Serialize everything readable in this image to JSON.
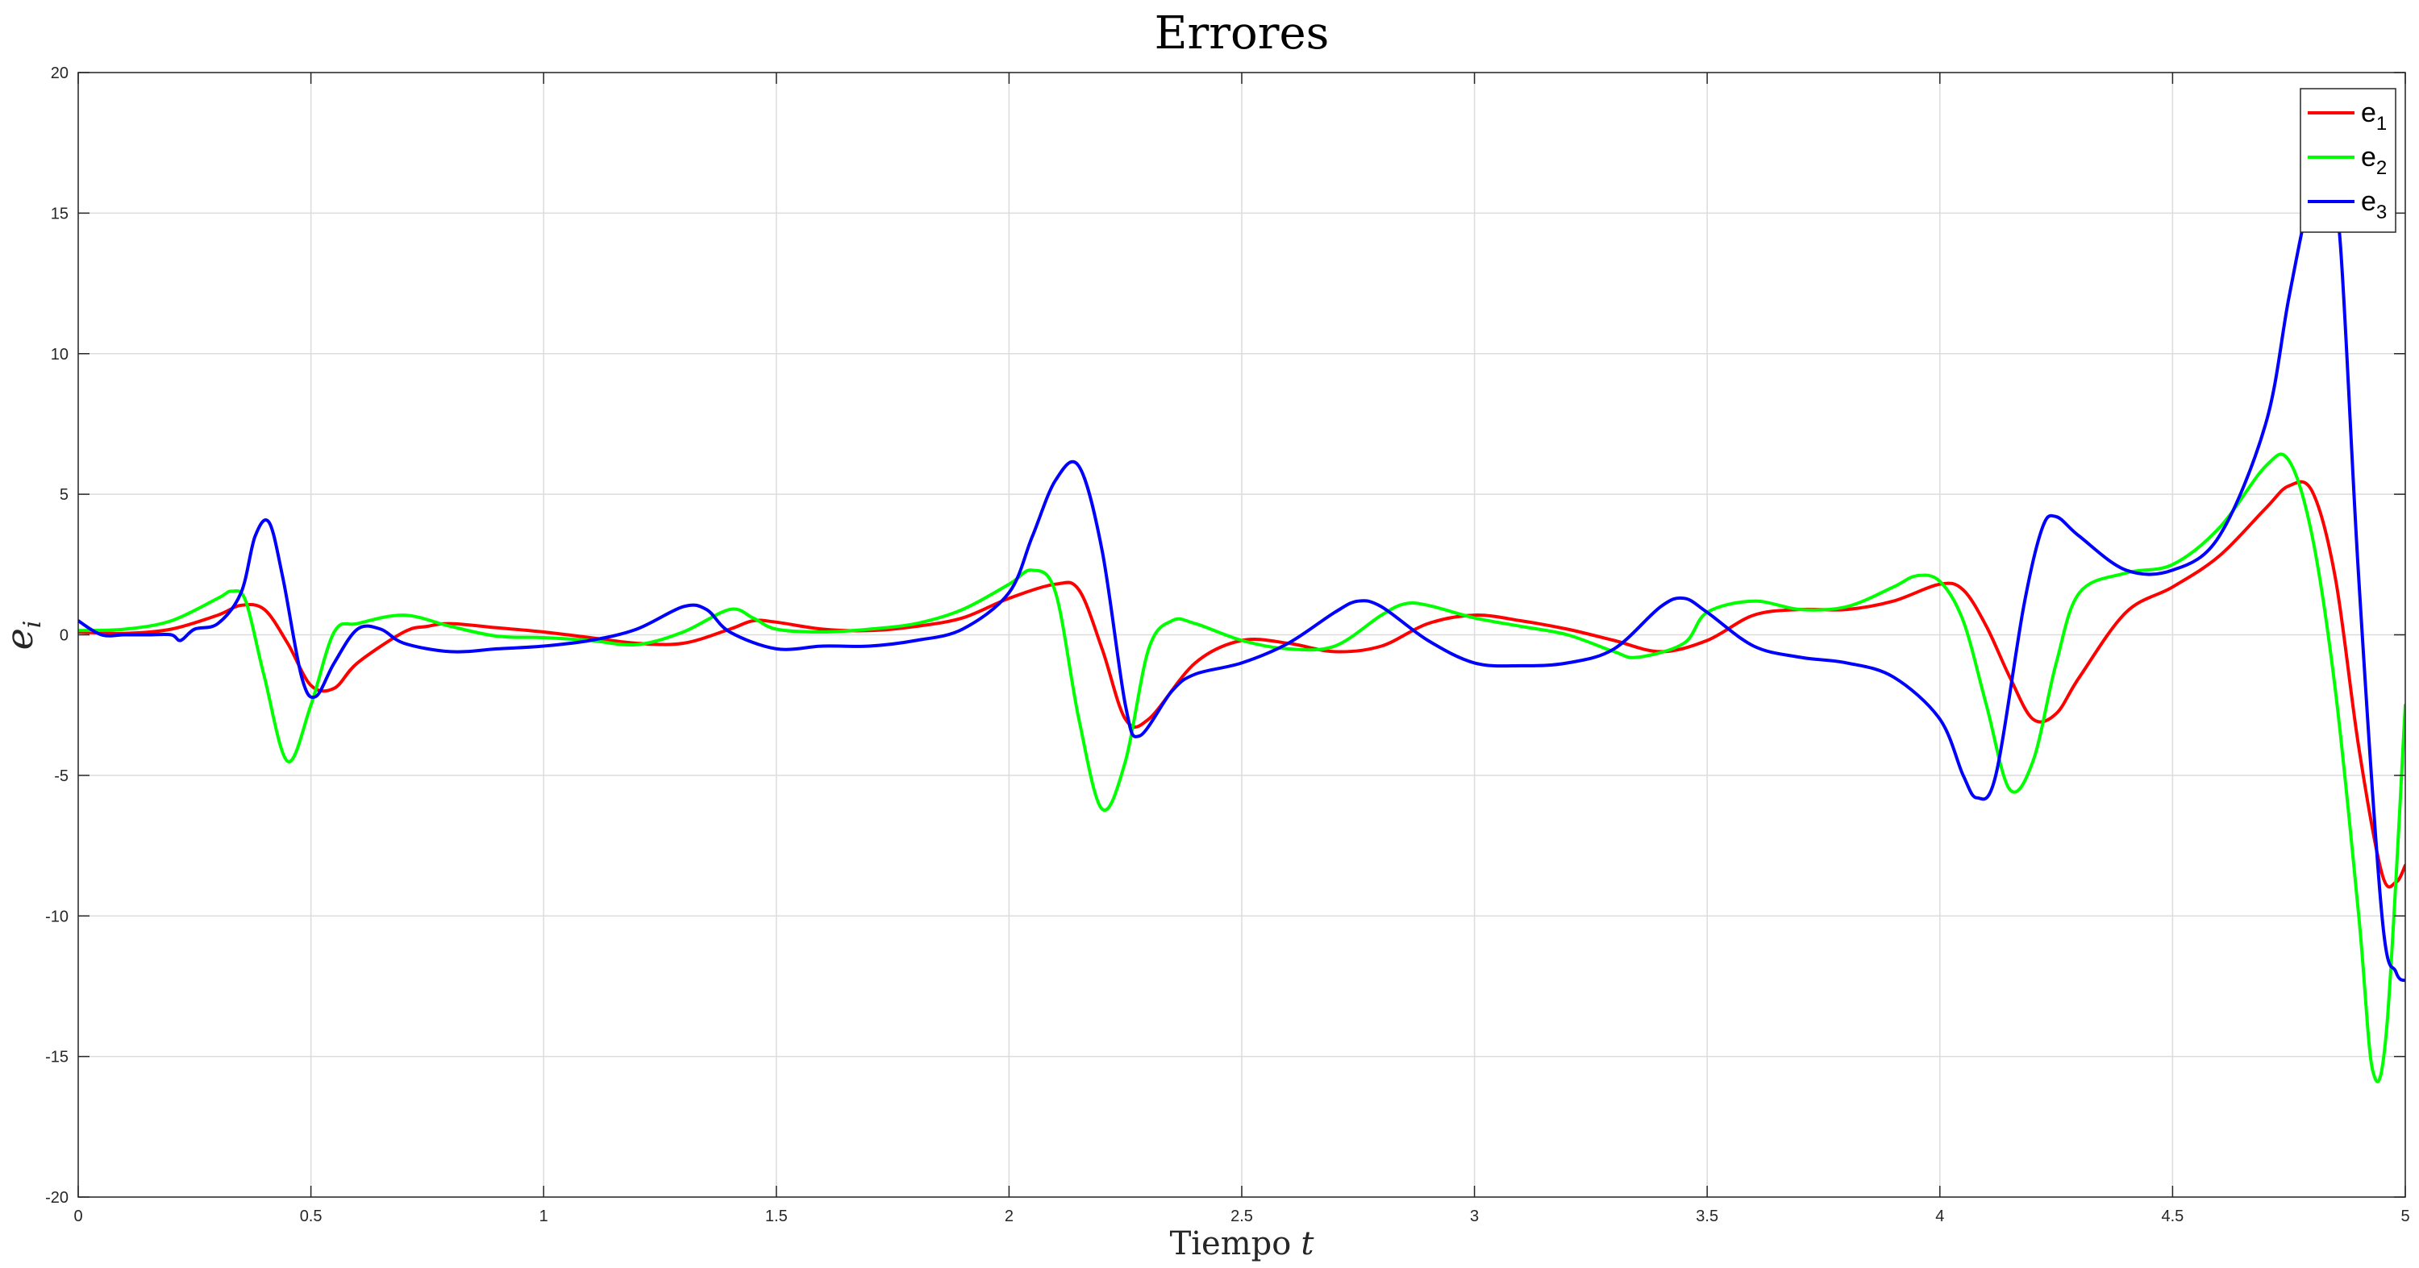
{
  "chart_data": {
    "type": "line",
    "title": "Errores",
    "xlabel_text": "Tiempo",
    "xlabel_var": "t",
    "ylabel_var": "e",
    "ylabel_sub": "i",
    "xlim": [
      0,
      5
    ],
    "ylim": [
      -20,
      20
    ],
    "xticks": [
      0,
      0.5,
      1,
      1.5,
      2,
      2.5,
      3,
      3.5,
      4,
      4.5,
      5
    ],
    "xtick_labels": [
      "0",
      "0.5",
      "1",
      "1.5",
      "2",
      "2.5",
      "3",
      "3.5",
      "4",
      "4.5",
      "5"
    ],
    "yticks": [
      -20,
      -15,
      -10,
      -5,
      0,
      5,
      10,
      15,
      20
    ],
    "ytick_labels": [
      "-20",
      "-15",
      "-10",
      "-5",
      "0",
      "5",
      "10",
      "15",
      "20"
    ],
    "grid": true,
    "legend_position": "top-right",
    "series": [
      {
        "name": "e",
        "sub": "1",
        "color": "#ff0000",
        "points": [
          [
            0,
            0.1
          ],
          [
            0.1,
            0.05
          ],
          [
            0.2,
            0.2
          ],
          [
            0.3,
            0.7
          ],
          [
            0.35,
            1.05
          ],
          [
            0.4,
            0.9
          ],
          [
            0.45,
            -0.3
          ],
          [
            0.5,
            -1.8
          ],
          [
            0.55,
            -1.9
          ],
          [
            0.6,
            -1.0
          ],
          [
            0.7,
            0.1
          ],
          [
            0.75,
            0.3
          ],
          [
            0.8,
            0.4
          ],
          [
            0.9,
            0.25
          ],
          [
            1.0,
            0.1
          ],
          [
            1.1,
            -0.1
          ],
          [
            1.2,
            -0.3
          ],
          [
            1.3,
            -0.3
          ],
          [
            1.4,
            0.2
          ],
          [
            1.45,
            0.5
          ],
          [
            1.5,
            0.45
          ],
          [
            1.6,
            0.2
          ],
          [
            1.7,
            0.15
          ],
          [
            1.8,
            0.3
          ],
          [
            1.9,
            0.6
          ],
          [
            2.0,
            1.3
          ],
          [
            2.1,
            1.8
          ],
          [
            2.15,
            1.6
          ],
          [
            2.2,
            -0.5
          ],
          [
            2.25,
            -3.0
          ],
          [
            2.3,
            -3.0
          ],
          [
            2.4,
            -1.0
          ],
          [
            2.5,
            -0.2
          ],
          [
            2.6,
            -0.3
          ],
          [
            2.7,
            -0.6
          ],
          [
            2.8,
            -0.4
          ],
          [
            2.9,
            0.4
          ],
          [
            3.0,
            0.7
          ],
          [
            3.1,
            0.5
          ],
          [
            3.2,
            0.2
          ],
          [
            3.3,
            -0.2
          ],
          [
            3.4,
            -0.6
          ],
          [
            3.5,
            -0.2
          ],
          [
            3.6,
            0.7
          ],
          [
            3.7,
            0.9
          ],
          [
            3.8,
            0.9
          ],
          [
            3.9,
            1.2
          ],
          [
            4.0,
            1.8
          ],
          [
            4.05,
            1.6
          ],
          [
            4.1,
            0.3
          ],
          [
            4.15,
            -1.5
          ],
          [
            4.2,
            -3.0
          ],
          [
            4.25,
            -2.8
          ],
          [
            4.3,
            -1.5
          ],
          [
            4.4,
            0.8
          ],
          [
            4.5,
            1.7
          ],
          [
            4.6,
            2.8
          ],
          [
            4.7,
            4.5
          ],
          [
            4.75,
            5.3
          ],
          [
            4.8,
            5.1
          ],
          [
            4.85,
            2.0
          ],
          [
            4.9,
            -4.0
          ],
          [
            4.95,
            -8.5
          ],
          [
            4.98,
            -8.8
          ],
          [
            5.0,
            -8.2
          ]
        ]
      },
      {
        "name": "e",
        "sub": "2",
        "color": "#00ff00",
        "points": [
          [
            0,
            0.15
          ],
          [
            0.1,
            0.2
          ],
          [
            0.2,
            0.5
          ],
          [
            0.3,
            1.3
          ],
          [
            0.33,
            1.55
          ],
          [
            0.36,
            1.2
          ],
          [
            0.4,
            -1.5
          ],
          [
            0.45,
            -4.5
          ],
          [
            0.5,
            -2.5
          ],
          [
            0.55,
            0.1
          ],
          [
            0.6,
            0.4
          ],
          [
            0.7,
            0.7
          ],
          [
            0.8,
            0.3
          ],
          [
            0.9,
            -0.05
          ],
          [
            1.0,
            -0.1
          ],
          [
            1.1,
            -0.2
          ],
          [
            1.2,
            -0.35
          ],
          [
            1.3,
            0.1
          ],
          [
            1.4,
            0.9
          ],
          [
            1.45,
            0.6
          ],
          [
            1.5,
            0.2
          ],
          [
            1.6,
            0.1
          ],
          [
            1.7,
            0.2
          ],
          [
            1.8,
            0.4
          ],
          [
            1.9,
            0.9
          ],
          [
            2.0,
            1.8
          ],
          [
            2.05,
            2.3
          ],
          [
            2.1,
            1.5
          ],
          [
            2.15,
            -3.0
          ],
          [
            2.2,
            -6.2
          ],
          [
            2.25,
            -4.5
          ],
          [
            2.3,
            -0.5
          ],
          [
            2.35,
            0.5
          ],
          [
            2.4,
            0.4
          ],
          [
            2.5,
            -0.2
          ],
          [
            2.6,
            -0.5
          ],
          [
            2.7,
            -0.4
          ],
          [
            2.8,
            0.7
          ],
          [
            2.85,
            1.1
          ],
          [
            2.9,
            1.05
          ],
          [
            3.0,
            0.6
          ],
          [
            3.1,
            0.3
          ],
          [
            3.2,
            0.0
          ],
          [
            3.3,
            -0.6
          ],
          [
            3.35,
            -0.8
          ],
          [
            3.45,
            -0.3
          ],
          [
            3.5,
            0.8
          ],
          [
            3.6,
            1.2
          ],
          [
            3.7,
            0.9
          ],
          [
            3.8,
            1.0
          ],
          [
            3.9,
            1.7
          ],
          [
            3.95,
            2.1
          ],
          [
            4.0,
            1.9
          ],
          [
            4.05,
            0.5
          ],
          [
            4.1,
            -2.5
          ],
          [
            4.15,
            -5.5
          ],
          [
            4.2,
            -4.5
          ],
          [
            4.25,
            -1.0
          ],
          [
            4.3,
            1.5
          ],
          [
            4.4,
            2.2
          ],
          [
            4.5,
            2.5
          ],
          [
            4.6,
            3.8
          ],
          [
            4.7,
            6.0
          ],
          [
            4.75,
            6.2
          ],
          [
            4.8,
            3.5
          ],
          [
            4.85,
            -2.0
          ],
          [
            4.9,
            -10.0
          ],
          [
            4.93,
            -15.5
          ],
          [
            4.96,
            -14.0
          ],
          [
            5.0,
            -2.5
          ]
        ]
      },
      {
        "name": "e",
        "sub": "3",
        "color": "#0000ff",
        "points": [
          [
            0,
            0.5
          ],
          [
            0.05,
            0.0
          ],
          [
            0.1,
            0.0
          ],
          [
            0.15,
            0.0
          ],
          [
            0.2,
            0.0
          ],
          [
            0.22,
            -0.2
          ],
          [
            0.25,
            0.2
          ],
          [
            0.3,
            0.4
          ],
          [
            0.35,
            1.5
          ],
          [
            0.38,
            3.5
          ],
          [
            0.41,
            4.0
          ],
          [
            0.44,
            2.0
          ],
          [
            0.48,
            -1.5
          ],
          [
            0.51,
            -2.2
          ],
          [
            0.55,
            -1.0
          ],
          [
            0.6,
            0.2
          ],
          [
            0.65,
            0.2
          ],
          [
            0.7,
            -0.3
          ],
          [
            0.8,
            -0.6
          ],
          [
            0.9,
            -0.5
          ],
          [
            1.0,
            -0.4
          ],
          [
            1.1,
            -0.2
          ],
          [
            1.2,
            0.2
          ],
          [
            1.3,
            1.0
          ],
          [
            1.35,
            0.9
          ],
          [
            1.4,
            0.1
          ],
          [
            1.5,
            -0.5
          ],
          [
            1.6,
            -0.4
          ],
          [
            1.7,
            -0.4
          ],
          [
            1.8,
            -0.2
          ],
          [
            1.9,
            0.2
          ],
          [
            2.0,
            1.5
          ],
          [
            2.05,
            3.5
          ],
          [
            2.1,
            5.5
          ],
          [
            2.15,
            6.0
          ],
          [
            2.2,
            3.0
          ],
          [
            2.25,
            -2.5
          ],
          [
            2.28,
            -3.6
          ],
          [
            2.35,
            -2.0
          ],
          [
            2.4,
            -1.4
          ],
          [
            2.5,
            -1.0
          ],
          [
            2.6,
            -0.3
          ],
          [
            2.7,
            0.8
          ],
          [
            2.75,
            1.2
          ],
          [
            2.8,
            1.0
          ],
          [
            2.9,
            -0.2
          ],
          [
            3.0,
            -1.0
          ],
          [
            3.1,
            -1.1
          ],
          [
            3.2,
            -1.0
          ],
          [
            3.3,
            -0.5
          ],
          [
            3.4,
            1.0
          ],
          [
            3.45,
            1.3
          ],
          [
            3.5,
            0.8
          ],
          [
            3.6,
            -0.4
          ],
          [
            3.7,
            -0.8
          ],
          [
            3.8,
            -1.0
          ],
          [
            3.9,
            -1.5
          ],
          [
            4.0,
            -3.0
          ],
          [
            4.05,
            -5.0
          ],
          [
            4.08,
            -5.8
          ],
          [
            4.12,
            -5.0
          ],
          [
            4.18,
            1.0
          ],
          [
            4.22,
            3.8
          ],
          [
            4.25,
            4.2
          ],
          [
            4.3,
            3.5
          ],
          [
            4.4,
            2.3
          ],
          [
            4.5,
            2.3
          ],
          [
            4.6,
            3.5
          ],
          [
            4.7,
            7.5
          ],
          [
            4.75,
            12.0
          ],
          [
            4.8,
            16.0
          ],
          [
            4.83,
            16.8
          ],
          [
            4.86,
            14.0
          ],
          [
            4.9,
            2.0
          ],
          [
            4.95,
            -10.0
          ],
          [
            4.98,
            -12.0
          ],
          [
            5.0,
            -12.3
          ]
        ]
      }
    ]
  }
}
